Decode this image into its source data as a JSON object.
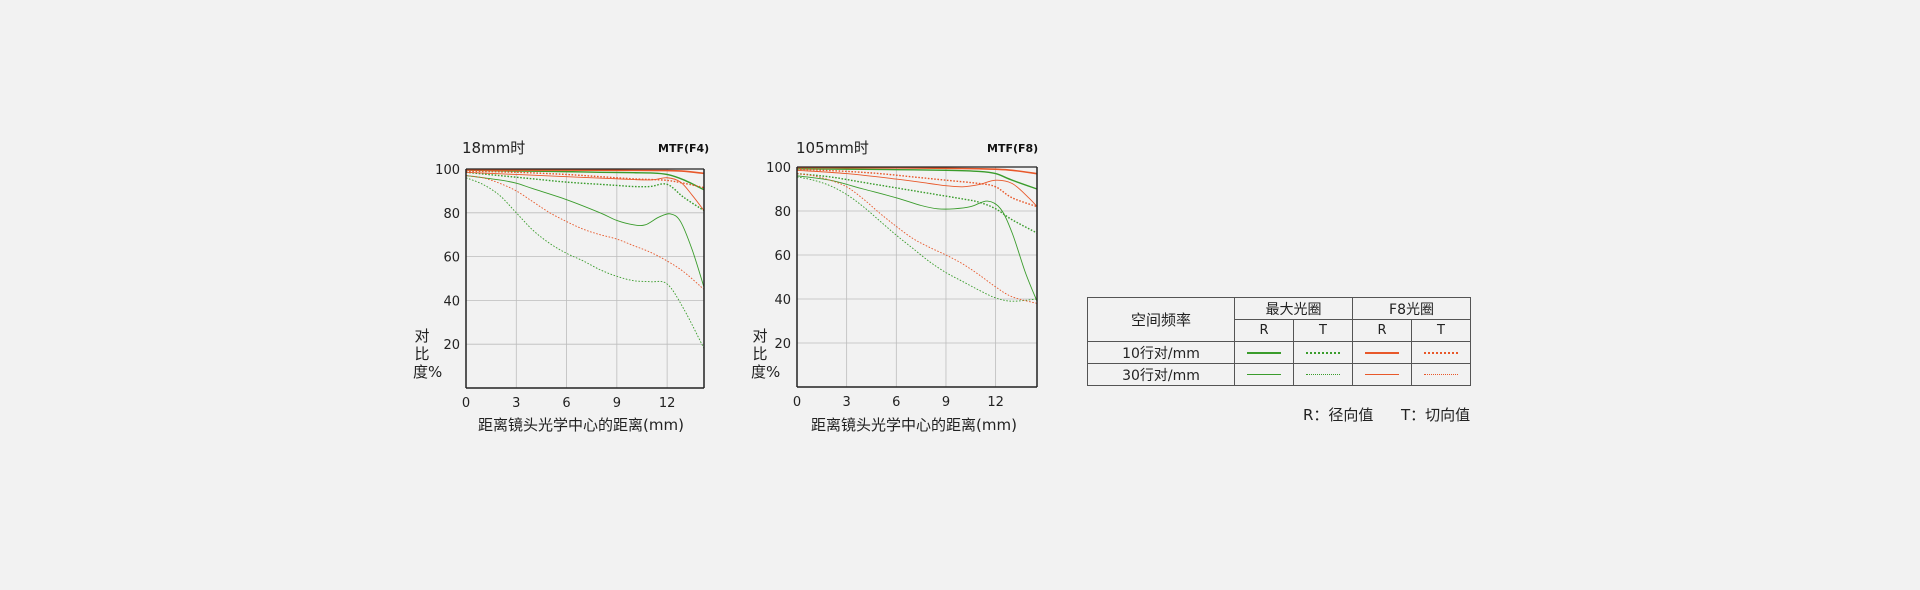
{
  "y_axis_title": "对比度%",
  "x_axis_title": "距离镜头光学中心的距离(mm)",
  "colors": {
    "green": "#3a9c2c",
    "orange": "#e8582a",
    "axis": "#222222",
    "grid": "#bdbdbd"
  },
  "chart_data": [
    {
      "type": "line",
      "title": "18mm时",
      "subtitle": "MTF(F4)",
      "xlabel": "距离镜头光学中心的距离(mm)",
      "ylabel": "对比度%",
      "xlim": [
        0,
        14.2
      ],
      "ylim": [
        0,
        100
      ],
      "xticks": [
        0,
        3,
        6,
        9,
        12
      ],
      "yticks": [
        20,
        40,
        60,
        80,
        100
      ],
      "grid": true,
      "series": [
        {
          "color": "green",
          "style": "solid",
          "width": 1.4,
          "points": [
            [
              0,
              99.5
            ],
            [
              2,
              99.2
            ],
            [
              4,
              99
            ],
            [
              6,
              98.8
            ],
            [
              8,
              98.5
            ],
            [
              10,
              98.3
            ],
            [
              11,
              98.2
            ],
            [
              12,
              97.5
            ],
            [
              13,
              95
            ],
            [
              14.2,
              90.5
            ]
          ]
        },
        {
          "color": "green",
          "style": "dotted",
          "width": 1.4,
          "points": [
            [
              0,
              98.5
            ],
            [
              2,
              97
            ],
            [
              4,
              95.5
            ],
            [
              6,
              94
            ],
            [
              8,
              93
            ],
            [
              9,
              92.5
            ],
            [
              10,
              92
            ],
            [
              11,
              92
            ],
            [
              12,
              93
            ],
            [
              13,
              87
            ],
            [
              14.2,
              81
            ]
          ]
        },
        {
          "color": "green",
          "style": "solid",
          "width": 0.9,
          "points": [
            [
              0,
              97
            ],
            [
              2,
              95
            ],
            [
              3,
              93.5
            ],
            [
              4,
              91
            ],
            [
              6,
              86
            ],
            [
              8,
              80
            ],
            [
              9,
              76.5
            ],
            [
              10,
              74.5
            ],
            [
              10.7,
              74.5
            ],
            [
              11.5,
              78
            ],
            [
              12.2,
              79.5
            ],
            [
              12.8,
              76
            ],
            [
              13.5,
              63
            ],
            [
              14.2,
              46
            ]
          ]
        },
        {
          "color": "green",
          "style": "dotted",
          "width": 0.9,
          "points": [
            [
              0,
              96
            ],
            [
              1,
              93
            ],
            [
              2,
              88
            ],
            [
              3,
              80
            ],
            [
              4,
              72
            ],
            [
              5,
              66
            ],
            [
              6,
              61.5
            ],
            [
              7,
              58
            ],
            [
              8,
              54
            ],
            [
              9,
              51
            ],
            [
              10,
              49
            ],
            [
              11,
              48.5
            ],
            [
              12,
              47.5
            ],
            [
              13,
              36
            ],
            [
              14.2,
              18
            ]
          ]
        },
        {
          "color": "orange",
          "style": "solid",
          "width": 1.6,
          "points": [
            [
              0,
              99.6
            ],
            [
              3,
              99.5
            ],
            [
              6,
              99.5
            ],
            [
              9,
              99.4
            ],
            [
              12,
              99.3
            ],
            [
              13,
              99
            ],
            [
              14.2,
              98
            ]
          ]
        },
        {
          "color": "orange",
          "style": "dotted",
          "width": 1.4,
          "points": [
            [
              0,
              99
            ],
            [
              3,
              98.5
            ],
            [
              6,
              97.5
            ],
            [
              8,
              96.5
            ],
            [
              10,
              95.5
            ],
            [
              11,
              95.2
            ],
            [
              12,
              94.8
            ],
            [
              13,
              93.5
            ],
            [
              14.2,
              91.5
            ]
          ]
        },
        {
          "color": "orange",
          "style": "solid",
          "width": 0.9,
          "points": [
            [
              0,
              98.5
            ],
            [
              3,
              97.5
            ],
            [
              6,
              96.5
            ],
            [
              9,
              95.5
            ],
            [
              11,
              95
            ],
            [
              12,
              96
            ],
            [
              12.8,
              94
            ],
            [
              13.5,
              88
            ],
            [
              14.2,
              81
            ]
          ]
        },
        {
          "color": "orange",
          "style": "dotted",
          "width": 0.9,
          "points": [
            [
              0,
              97
            ],
            [
              1,
              96
            ],
            [
              2,
              93.5
            ],
            [
              3,
              90
            ],
            [
              4,
              85
            ],
            [
              5,
              80
            ],
            [
              6,
              76
            ],
            [
              7,
              72.5
            ],
            [
              8,
              70
            ],
            [
              9,
              68
            ],
            [
              10,
              65
            ],
            [
              11,
              62
            ],
            [
              12,
              58
            ],
            [
              13,
              53
            ],
            [
              14.2,
              45
            ]
          ]
        }
      ]
    },
    {
      "type": "line",
      "title": "105mm时",
      "subtitle": "MTF(F8)",
      "xlabel": "距离镜头光学中心的距离(mm)",
      "ylabel": "对比度%",
      "xlim": [
        0,
        14.5
      ],
      "ylim": [
        0,
        100
      ],
      "xticks": [
        0,
        3,
        6,
        9,
        12
      ],
      "yticks": [
        20,
        40,
        60,
        80,
        100
      ],
      "grid": true,
      "series": [
        {
          "color": "green",
          "style": "solid",
          "width": 1.4,
          "points": [
            [
              0,
              99.2
            ],
            [
              3,
              99
            ],
            [
              6,
              98.8
            ],
            [
              9,
              98.5
            ],
            [
              11,
              98
            ],
            [
              12,
              97
            ],
            [
              13,
              94
            ],
            [
              14.5,
              90
            ]
          ]
        },
        {
          "color": "green",
          "style": "dotted",
          "width": 1.4,
          "points": [
            [
              0,
              97
            ],
            [
              2,
              95.5
            ],
            [
              4,
              93
            ],
            [
              6,
              90.5
            ],
            [
              8,
              88
            ],
            [
              10,
              85.5
            ],
            [
              11,
              84
            ],
            [
              12,
              81
            ],
            [
              13,
              76
            ],
            [
              14.5,
              70
            ]
          ]
        },
        {
          "color": "green",
          "style": "solid",
          "width": 0.9,
          "points": [
            [
              0,
              96
            ],
            [
              2,
              94
            ],
            [
              4,
              90
            ],
            [
              6,
              86
            ],
            [
              7.5,
              82.5
            ],
            [
              8.5,
              81
            ],
            [
              9.5,
              81
            ],
            [
              10.5,
              82
            ],
            [
              11.5,
              84.5
            ],
            [
              12.3,
              81
            ],
            [
              13,
              70
            ],
            [
              13.8,
              52
            ],
            [
              14.5,
              39
            ]
          ]
        },
        {
          "color": "green",
          "style": "dotted",
          "width": 0.9,
          "points": [
            [
              0,
              95.5
            ],
            [
              1,
              94
            ],
            [
              2,
              91.5
            ],
            [
              3,
              87.5
            ],
            [
              4,
              82
            ],
            [
              5,
              75.5
            ],
            [
              6,
              69
            ],
            [
              7,
              63
            ],
            [
              8,
              57
            ],
            [
              9,
              52
            ],
            [
              10,
              48
            ],
            [
              11,
              44
            ],
            [
              12,
              40.5
            ],
            [
              13,
              39
            ],
            [
              14.5,
              40
            ]
          ]
        },
        {
          "color": "orange",
          "style": "solid",
          "width": 1.6,
          "points": [
            [
              0,
              99.8
            ],
            [
              3,
              99.7
            ],
            [
              6,
              99.6
            ],
            [
              9,
              99.4
            ],
            [
              11,
              99.2
            ],
            [
              12,
              99
            ],
            [
              13,
              98.5
            ],
            [
              14.5,
              97
            ]
          ]
        },
        {
          "color": "orange",
          "style": "dotted",
          "width": 1.4,
          "points": [
            [
              0,
              99
            ],
            [
              3,
              98
            ],
            [
              5,
              97
            ],
            [
              7,
              95.5
            ],
            [
              9,
              94
            ],
            [
              11,
              92.5
            ],
            [
              12,
              91
            ],
            [
              13,
              86
            ],
            [
              14.5,
              82
            ]
          ]
        },
        {
          "color": "orange",
          "style": "solid",
          "width": 0.9,
          "points": [
            [
              0,
              98.5
            ],
            [
              3,
              97
            ],
            [
              6,
              94.5
            ],
            [
              8,
              92.5
            ],
            [
              9,
              91.5
            ],
            [
              10,
              91
            ],
            [
              11,
              92
            ],
            [
              12,
              94
            ],
            [
              13,
              92.5
            ],
            [
              14,
              86
            ],
            [
              14.5,
              82
            ]
          ]
        },
        {
          "color": "orange",
          "style": "dotted",
          "width": 0.9,
          "points": [
            [
              0,
              97
            ],
            [
              1,
              96
            ],
            [
              2,
              94
            ],
            [
              3,
              91
            ],
            [
              4,
              85.5
            ],
            [
              5,
              79
            ],
            [
              6,
              73
            ],
            [
              7,
              67.5
            ],
            [
              8,
              63.5
            ],
            [
              9,
              60
            ],
            [
              10,
              56
            ],
            [
              11,
              51
            ],
            [
              12,
              45.5
            ],
            [
              13,
              41
            ],
            [
              14.5,
              38
            ]
          ]
        }
      ]
    }
  ],
  "legend": {
    "header": "空间频率",
    "group1": "最大光圈",
    "group2": "F8光圈",
    "sub_r": "R",
    "sub_t": "T",
    "rows": [
      {
        "label": "10行对/mm",
        "width": 1.6
      },
      {
        "label": "30行对/mm",
        "width": 0.9
      }
    ],
    "note_r": "R：径向值",
    "note_t": "T：切向值"
  }
}
